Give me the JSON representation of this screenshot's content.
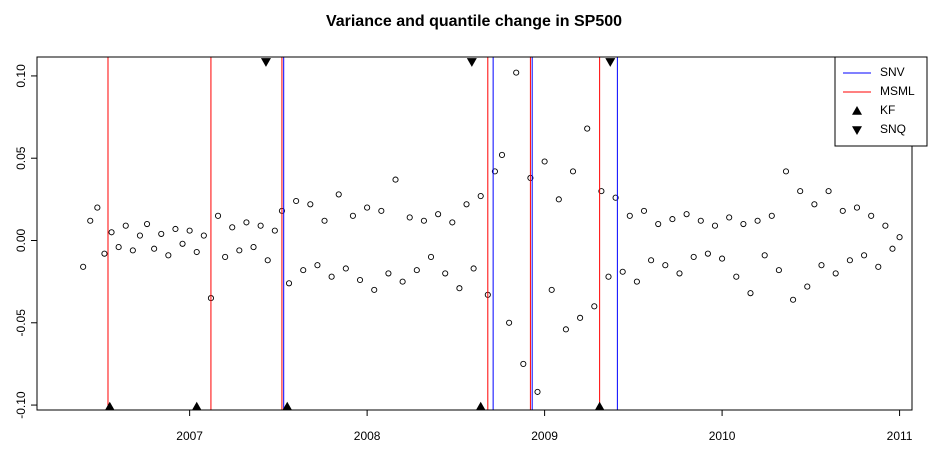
{
  "chart_data": {
    "type": "scatter",
    "title": "Variance and quantile change in SP500",
    "xlim": [
      2006.14,
      2011.07
    ],
    "ylim": [
      -0.103,
      0.1115
    ],
    "xticks": [
      2007,
      2008,
      2009,
      2010,
      2011
    ],
    "yticks": [
      {
        "value": -0.1,
        "label": "-0.10"
      },
      {
        "value": -0.05,
        "label": "-0.05"
      },
      {
        "value": 0,
        "label": "0.00"
      },
      {
        "value": 0.05,
        "label": "0.05"
      },
      {
        "value": 0.1,
        "label": "0.10"
      }
    ],
    "grid": false,
    "legend": "topright",
    "point_color": "#000000",
    "x": [
      2006.4,
      2006.44,
      2006.48,
      2006.52,
      2006.56,
      2006.6,
      2006.64,
      2006.68,
      2006.72,
      2006.76,
      2006.8,
      2006.84,
      2006.88,
      2006.92,
      2006.96,
      2007.0,
      2007.04,
      2007.08,
      2007.12,
      2007.16,
      2007.2,
      2007.24,
      2007.28,
      2007.32,
      2007.36,
      2007.4,
      2007.44,
      2007.48,
      2007.52,
      2007.56,
      2007.6,
      2007.64,
      2007.68,
      2007.72,
      2007.76,
      2007.8,
      2007.84,
      2007.88,
      2007.92,
      2007.96,
      2008.0,
      2008.04,
      2008.08,
      2008.12,
      2008.16,
      2008.2,
      2008.24,
      2008.28,
      2008.32,
      2008.36,
      2008.4,
      2008.44,
      2008.48,
      2008.52,
      2008.56,
      2008.6,
      2008.64,
      2008.68,
      2008.72,
      2008.76,
      2008.8,
      2008.84,
      2008.88,
      2008.92,
      2008.96,
      2009.0,
      2009.04,
      2009.08,
      2009.12,
      2009.16,
      2009.2,
      2009.24,
      2009.28,
      2009.32,
      2009.36,
      2009.4,
      2009.44,
      2009.48,
      2009.52,
      2009.56,
      2009.6,
      2009.64,
      2009.68,
      2009.72,
      2009.76,
      2009.8,
      2009.84,
      2009.88,
      2009.92,
      2009.96,
      2010.0,
      2010.04,
      2010.08,
      2010.12,
      2010.16,
      2010.2,
      2010.24,
      2010.28,
      2010.32,
      2010.36,
      2010.4,
      2010.44,
      2010.48,
      2010.52,
      2010.56,
      2010.6,
      2010.64,
      2010.68,
      2010.72,
      2010.76,
      2010.8,
      2010.84,
      2010.88,
      2010.92,
      2010.96,
      2011.0
    ],
    "values": [
      -0.016,
      0.012,
      0.02,
      -0.008,
      0.005,
      -0.004,
      0.009,
      -0.006,
      0.003,
      0.01,
      -0.005,
      0.004,
      -0.009,
      0.007,
      -0.002,
      0.006,
      -0.007,
      0.003,
      -0.035,
      0.015,
      -0.01,
      0.008,
      -0.006,
      0.011,
      -0.004,
      0.009,
      -0.012,
      0.006,
      0.018,
      -0.026,
      0.024,
      -0.018,
      0.022,
      -0.015,
      0.012,
      -0.022,
      0.028,
      -0.017,
      0.015,
      -0.024,
      0.02,
      -0.03,
      0.018,
      -0.02,
      0.037,
      -0.025,
      0.014,
      -0.018,
      0.012,
      -0.01,
      0.016,
      -0.02,
      0.011,
      -0.029,
      0.022,
      -0.017,
      0.027,
      -0.033,
      0.042,
      0.052,
      -0.05,
      0.102,
      -0.075,
      0.038,
      -0.092,
      0.048,
      -0.03,
      0.025,
      -0.054,
      0.042,
      -0.047,
      0.068,
      -0.04,
      0.03,
      -0.022,
      0.026,
      -0.019,
      0.015,
      -0.025,
      0.018,
      -0.012,
      0.01,
      -0.015,
      0.013,
      -0.02,
      0.016,
      -0.01,
      0.012,
      -0.008,
      0.009,
      -0.011,
      0.014,
      -0.022,
      0.01,
      -0.032,
      0.012,
      -0.009,
      0.015,
      -0.018,
      0.042,
      -0.036,
      0.03,
      -0.028,
      0.022,
      -0.015,
      0.03,
      -0.02,
      0.018,
      -0.012,
      0.02,
      -0.009,
      0.015,
      -0.016,
      0.009,
      -0.005,
      0.002
    ],
    "series": [
      {
        "name": "SNV",
        "color": "#0000ff",
        "kind": "vline",
        "x": [
          2007.53,
          2008.71,
          2008.93,
          2009.41
        ]
      },
      {
        "name": "MSML",
        "color": "#ff0000",
        "kind": "vline",
        "x": [
          2006.54,
          2007.12,
          2007.52,
          2008.68,
          2008.92,
          2009.31
        ]
      },
      {
        "name": "KF",
        "color": "#000000",
        "kind": "up",
        "x": [
          2006.55,
          2007.04,
          2007.55,
          2008.64,
          2009.31
        ],
        "values": [
          -0.101,
          -0.101,
          -0.101,
          -0.101,
          -0.101
        ]
      },
      {
        "name": "SNQ",
        "color": "#000000",
        "kind": "down",
        "x": [
          2007.43,
          2008.59,
          2009.37
        ],
        "values": [
          0.1085,
          0.1085,
          0.1085
        ]
      }
    ]
  }
}
